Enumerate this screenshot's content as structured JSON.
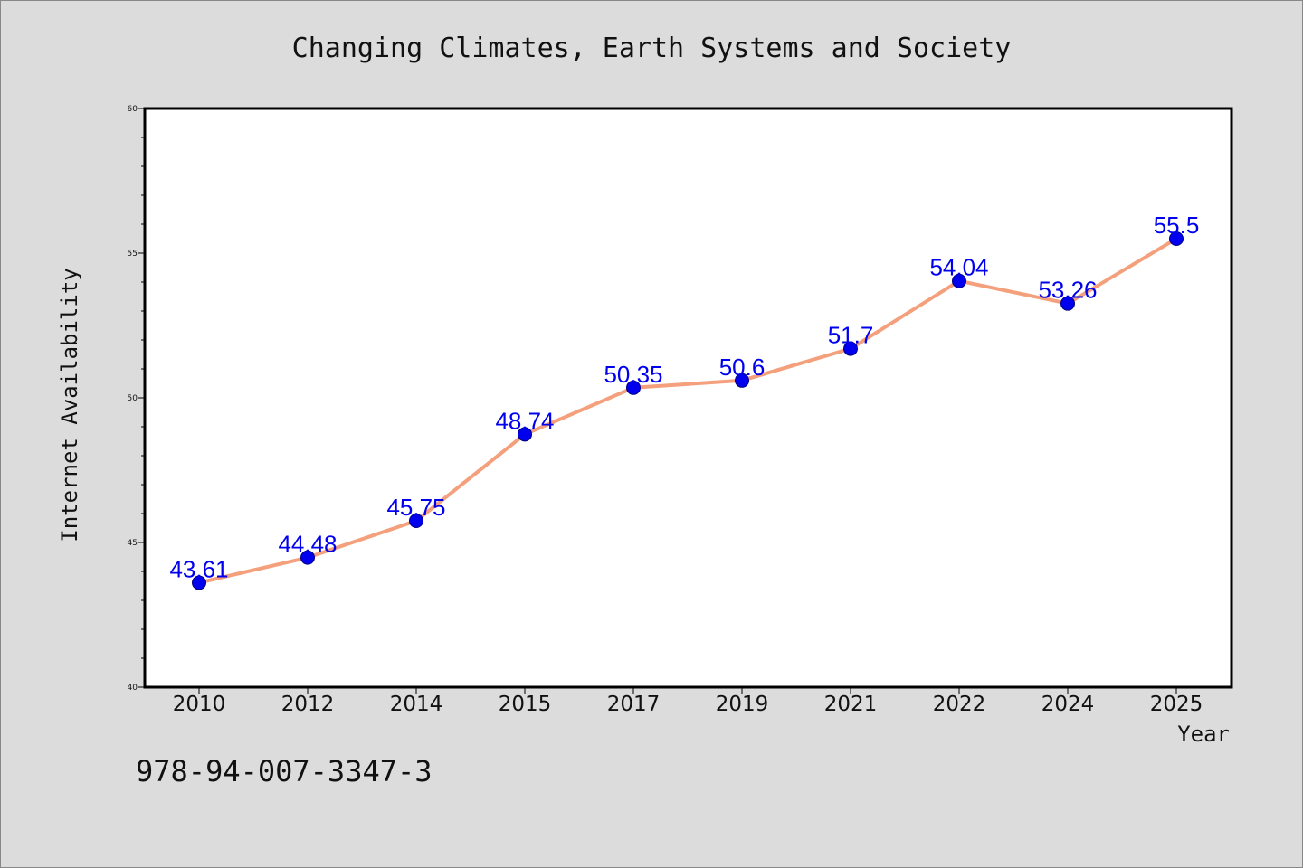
{
  "chart_data": {
    "type": "line",
    "title": "Changing Climates, Earth Systems and Society",
    "xlabel": "Year",
    "ylabel": "Internet Availability",
    "categories": [
      "2010",
      "2012",
      "2014",
      "2015",
      "2017",
      "2019",
      "2021",
      "2022",
      "2024",
      "2025"
    ],
    "series": [
      {
        "values": [
          43.61,
          44.48,
          45.75,
          48.74,
          50.35,
          50.6,
          51.7,
          54.04,
          53.26,
          55.5
        ],
        "data_labels": [
          "43.61",
          "44.48",
          "45.75",
          "48.74",
          "50.35",
          "50.6",
          "51.7",
          "54.04",
          "53.26",
          "55.5"
        ]
      }
    ],
    "ylim": [
      40,
      60
    ],
    "yticks": [
      "40",
      "45",
      "50",
      "55",
      "60"
    ],
    "grid": false,
    "legend": "none",
    "colors": {
      "line": "#f4a07c",
      "marker": "#0000ee",
      "marker_edge": "#000080",
      "data_label": "#0000ee",
      "plot_background": "#ffffff",
      "figure_background": "#dcdcdc"
    }
  },
  "footer": {
    "isbn": "978-94-007-3347-3"
  }
}
